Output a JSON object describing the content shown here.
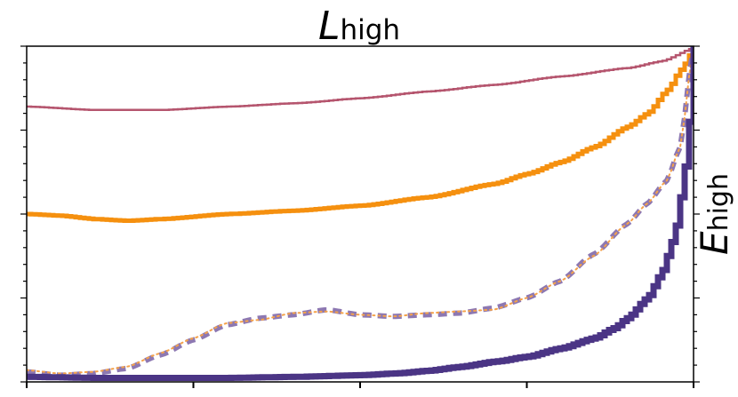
{
  "chart_data": {
    "type": "line",
    "title": {
      "main": "L",
      "sub": "high"
    },
    "ylabel": {
      "main": "E",
      "sub": "high"
    },
    "xlabel": "",
    "xlim": [
      0,
      1
    ],
    "ylim": [
      0,
      1
    ],
    "grid": false,
    "legend": "none",
    "x_major_ticks": [
      0,
      0.25,
      0.5,
      0.75,
      1.0
    ],
    "y_minor_ticks": [
      0.0,
      0.05,
      0.1,
      0.15,
      0.2,
      0.25,
      0.3,
      0.35,
      0.4,
      0.45,
      0.5,
      0.55,
      0.6,
      0.65,
      0.7,
      0.75,
      0.8,
      0.85,
      0.9,
      0.95,
      1.0
    ],
    "series": [
      {
        "color": "#b5556e",
        "style": "step",
        "width": 2.5,
        "x": [
          0.0,
          0.1,
          0.2,
          0.3,
          0.4,
          0.5,
          0.6,
          0.7,
          0.8,
          0.9,
          0.95,
          1.0
        ],
        "values": [
          0.82,
          0.81,
          0.81,
          0.82,
          0.83,
          0.845,
          0.865,
          0.885,
          0.91,
          0.935,
          0.955,
          0.995
        ]
      },
      {
        "color": "#f5900f",
        "style": "step",
        "width": 5,
        "x": [
          0.0,
          0.05,
          0.1,
          0.15,
          0.2,
          0.3,
          0.4,
          0.5,
          0.6,
          0.7,
          0.75,
          0.8,
          0.85,
          0.9,
          0.93,
          0.96,
          0.98,
          1.0
        ],
        "values": [
          0.5,
          0.495,
          0.485,
          0.48,
          0.485,
          0.5,
          0.51,
          0.525,
          0.55,
          0.59,
          0.62,
          0.655,
          0.7,
          0.76,
          0.8,
          0.87,
          0.93,
          0.99
        ]
      },
      {
        "color": "#8d78b2",
        "style": "dashed",
        "width": 6,
        "x": [
          0.0,
          0.05,
          0.1,
          0.15,
          0.2,
          0.25,
          0.3,
          0.35,
          0.4,
          0.45,
          0.5,
          0.55,
          0.6,
          0.65,
          0.7,
          0.75,
          0.8,
          0.85,
          0.9,
          0.93,
          0.96,
          0.98,
          1.0
        ],
        "values": [
          0.03,
          0.02,
          0.025,
          0.04,
          0.08,
          0.125,
          0.17,
          0.19,
          0.2,
          0.215,
          0.2,
          0.195,
          0.2,
          0.205,
          0.22,
          0.25,
          0.3,
          0.38,
          0.47,
          0.53,
          0.6,
          0.7,
          1.0
        ]
      },
      {
        "color": "#f5a24a",
        "style": "dotted",
        "width": 2,
        "x": [
          0.0,
          0.05,
          0.1,
          0.15,
          0.2,
          0.25,
          0.3,
          0.35,
          0.4,
          0.45,
          0.5,
          0.55,
          0.6,
          0.65,
          0.7,
          0.75,
          0.8,
          0.85,
          0.9,
          0.93,
          0.96,
          0.98,
          1.0
        ],
        "values": [
          0.035,
          0.025,
          0.03,
          0.045,
          0.085,
          0.13,
          0.175,
          0.185,
          0.205,
          0.21,
          0.2,
          0.195,
          0.205,
          0.21,
          0.215,
          0.25,
          0.3,
          0.375,
          0.47,
          0.53,
          0.6,
          0.7,
          1.0
        ]
      },
      {
        "color": "#4b3585",
        "style": "step",
        "width": 7,
        "x": [
          0.0,
          0.1,
          0.2,
          0.3,
          0.4,
          0.5,
          0.55,
          0.6,
          0.65,
          0.7,
          0.75,
          0.8,
          0.85,
          0.88,
          0.9,
          0.93,
          0.95,
          0.97,
          0.98,
          0.99,
          1.0
        ],
        "values": [
          0.015,
          0.012,
          0.012,
          0.012,
          0.015,
          0.02,
          0.025,
          0.033,
          0.045,
          0.06,
          0.075,
          0.1,
          0.13,
          0.16,
          0.19,
          0.25,
          0.32,
          0.43,
          0.55,
          0.68,
          1.0
        ]
      }
    ]
  }
}
